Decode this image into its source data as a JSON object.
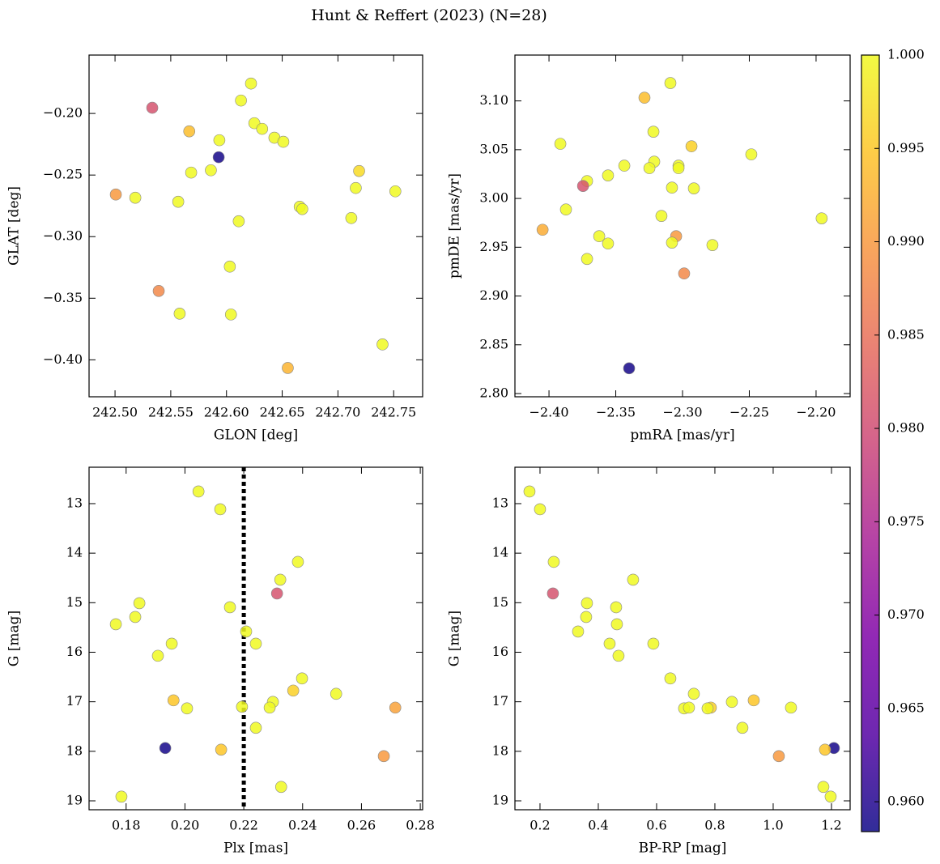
{
  "title": "Hunt & Reffert (2023) (N=28)",
  "colorbar": {
    "colormap": "plasma",
    "clim": [
      0.9584,
      1.0
    ],
    "ticks": [
      {
        "value": 0.96,
        "label": "0.960"
      },
      {
        "value": 0.965,
        "label": "0.965"
      },
      {
        "value": 0.97,
        "label": "0.970"
      },
      {
        "value": 0.975,
        "label": "0.975"
      },
      {
        "value": 0.98,
        "label": "0.980"
      },
      {
        "value": 0.985,
        "label": "0.985"
      },
      {
        "value": 0.99,
        "label": "0.990"
      },
      {
        "value": 0.995,
        "label": "0.995"
      },
      {
        "value": 1.0,
        "label": "1.000"
      }
    ]
  },
  "chart_data": [
    {
      "type": "scatter",
      "xlabel": "GLON [deg]",
      "ylabel": "GLAT [deg]",
      "x": [
        242.5334,
        242.622,
        242.613,
        242.5666,
        242.5936,
        242.593,
        242.625,
        242.632,
        242.643,
        242.651,
        242.5683,
        242.586,
        242.5007,
        242.5182,
        242.5567,
        242.611,
        242.719,
        242.716,
        242.7515,
        242.6657,
        242.668,
        242.712,
        242.603,
        242.5392,
        242.558,
        242.604,
        242.74,
        242.655
      ],
      "values": [
        -0.1954,
        -0.1757,
        -0.1895,
        -0.2145,
        -0.2217,
        -0.2355,
        -0.2079,
        -0.2125,
        -0.2197,
        -0.223,
        -0.248,
        -0.2461,
        -0.2658,
        -0.2684,
        -0.2717,
        -0.2875,
        -0.2467,
        -0.2605,
        -0.2632,
        -0.2757,
        -0.2776,
        -0.2849,
        -0.3243,
        -0.3441,
        -0.3625,
        -0.3632,
        -0.3875,
        -0.4066
      ],
      "color_values": [
        0.981,
        1.0,
        1.0,
        0.994,
        1.0,
        0.959,
        1.0,
        1.0,
        1.0,
        1.0,
        1.0,
        1.0,
        0.99,
        1.0,
        1.0,
        1.0,
        0.997,
        1.0,
        1.0,
        1.0,
        1.0,
        1.0,
        1.0,
        0.988,
        1.0,
        1.0,
        1.0,
        0.993
      ],
      "xlim": [
        242.4767,
        242.776
      ],
      "ylim": [
        -0.43,
        -0.1526
      ],
      "xticks": [
        {
          "value": 242.5,
          "label": "242.50"
        },
        {
          "value": 242.55,
          "label": "242.55"
        },
        {
          "value": 242.6,
          "label": "242.60"
        },
        {
          "value": 242.65,
          "label": "242.65"
        },
        {
          "value": 242.7,
          "label": "242.70"
        },
        {
          "value": 242.75,
          "label": "242.75"
        }
      ],
      "yticks": [
        {
          "value": -0.4,
          "label": "−0.40"
        },
        {
          "value": -0.35,
          "label": "−0.35"
        },
        {
          "value": -0.3,
          "label": "−0.30"
        },
        {
          "value": -0.25,
          "label": "−0.25"
        },
        {
          "value": -0.2,
          "label": "−0.20"
        }
      ]
    },
    {
      "type": "scatter",
      "xlabel": "pmRA [mas/yr]",
      "ylabel": "pmDE [mas/yr]",
      "x": [
        -2.3091,
        -2.3285,
        -2.3218,
        -2.3915,
        -2.2485,
        -2.2933,
        -2.3212,
        -2.3436,
        -2.3248,
        -2.303,
        -2.303,
        -2.3558,
        -2.3715,
        -2.3745,
        -2.3079,
        -2.2915,
        -2.3873,
        -2.3158,
        -2.1958,
        -2.4048,
        -2.3624,
        -2.3048,
        -2.3558,
        -2.3079,
        -2.2776,
        -2.3715,
        -2.2988,
        -2.34
      ],
      "values": [
        3.1183,
        3.1033,
        3.0684,
        3.056,
        3.0452,
        3.0535,
        3.0377,
        3.0336,
        3.0311,
        3.0336,
        3.0311,
        3.0236,
        3.0178,
        3.0128,
        3.0111,
        3.0103,
        2.9887,
        2.9821,
        2.9796,
        2.9679,
        2.9613,
        2.9613,
        2.9538,
        2.9547,
        2.9522,
        2.938,
        2.9231,
        2.8259
      ],
      "color_values": [
        1.0,
        0.994,
        1.0,
        1.0,
        1.0,
        0.996,
        1.0,
        1.0,
        1.0,
        1.0,
        1.0,
        1.0,
        1.0,
        0.981,
        1.0,
        1.0,
        1.0,
        1.0,
        1.0,
        0.992,
        1.0,
        0.99,
        1.0,
        1.0,
        1.0,
        1.0,
        0.988,
        0.959
      ],
      "xlim": [
        -2.4255,
        -2.1745
      ],
      "ylim": [
        2.7967,
        3.147
      ],
      "xticks": [
        {
          "value": -2.4,
          "label": "−2.40"
        },
        {
          "value": -2.35,
          "label": "−2.35"
        },
        {
          "value": -2.3,
          "label": "−2.30"
        },
        {
          "value": -2.25,
          "label": "−2.25"
        },
        {
          "value": -2.2,
          "label": "−2.20"
        }
      ],
      "yticks": [
        {
          "value": 2.8,
          "label": "2.80"
        },
        {
          "value": 2.85,
          "label": "2.85"
        },
        {
          "value": 2.9,
          "label": "2.90"
        },
        {
          "value": 2.95,
          "label": "2.95"
        },
        {
          "value": 3.0,
          "label": "3.00"
        },
        {
          "value": 3.05,
          "label": "3.05"
        },
        {
          "value": 3.1,
          "label": "3.10"
        }
      ]
    },
    {
      "type": "scatter",
      "xlabel": "Plx [mas]",
      "ylabel": "G [mag]",
      "x": [
        0.2046,
        0.212,
        0.2384,
        0.2324,
        0.2313,
        0.1845,
        0.1831,
        0.1765,
        0.2153,
        0.2208,
        0.2241,
        0.1955,
        0.1908,
        0.2398,
        0.2514,
        0.2368,
        0.2299,
        0.1961,
        0.2007,
        0.2194,
        0.2288,
        0.2715,
        0.2241,
        0.1933,
        0.2123,
        0.2676,
        0.2327,
        0.1784
      ],
      "values": [
        12.755,
        13.114,
        14.176,
        14.536,
        14.814,
        15.01,
        15.288,
        15.435,
        15.092,
        15.582,
        15.827,
        15.827,
        16.072,
        16.529,
        16.84,
        16.775,
        17.003,
        16.971,
        17.134,
        17.101,
        17.118,
        17.118,
        17.526,
        17.935,
        17.967,
        18.098,
        18.719,
        18.915
      ],
      "color_values": [
        1.0,
        1.0,
        1.0,
        1.0,
        0.981,
        1.0,
        1.0,
        1.0,
        1.0,
        1.0,
        1.0,
        1.0,
        1.0,
        1.0,
        1.0,
        0.996,
        1.0,
        0.995,
        1.0,
        1.0,
        1.0,
        0.991,
        1.0,
        0.959,
        0.995,
        0.99,
        1.0,
        1.0
      ],
      "xlim": [
        0.1674,
        0.2808
      ],
      "ylim": [
        19.18,
        12.265
      ],
      "xticks": [
        {
          "value": 0.18,
          "label": "0.18"
        },
        {
          "value": 0.2,
          "label": "0.20"
        },
        {
          "value": 0.22,
          "label": "0.22"
        },
        {
          "value": 0.24,
          "label": "0.24"
        },
        {
          "value": 0.26,
          "label": "0.26"
        },
        {
          "value": 0.28,
          "label": "0.28"
        }
      ],
      "yticks": [
        13,
        14,
        15,
        16,
        17,
        18,
        19
      ],
      "vline": 0.22
    },
    {
      "type": "scatter",
      "xlabel": "BP-RP [mag]",
      "ylabel": "G [mag]",
      "x": [
        0.1639,
        0.2,
        0.2472,
        0.5194,
        0.2444,
        0.3611,
        0.4611,
        0.3583,
        0.4639,
        0.3306,
        0.4389,
        0.5889,
        0.4694,
        0.6472,
        0.7278,
        0.8583,
        0.9333,
        0.6944,
        0.7861,
        0.775,
        1.0611,
        0.8944,
        1.2083,
        1.1778,
        1.0194,
        1.1722,
        1.1972,
        0.7111
      ],
      "values": [
        12.755,
        13.114,
        14.176,
        14.536,
        14.814,
        15.01,
        15.092,
        15.288,
        15.435,
        15.582,
        15.827,
        15.827,
        16.072,
        16.529,
        16.84,
        17.003,
        16.971,
        17.134,
        17.118,
        17.134,
        17.118,
        17.526,
        17.935,
        17.967,
        18.098,
        18.719,
        18.915,
        17.118
      ],
      "color_values": [
        1.0,
        1.0,
        1.0,
        1.0,
        0.981,
        1.0,
        1.0,
        1.0,
        1.0,
        1.0,
        1.0,
        1.0,
        1.0,
        1.0,
        1.0,
        1.0,
        0.995,
        1.0,
        0.996,
        1.0,
        1.0,
        1.0,
        0.959,
        0.995,
        0.99,
        1.0,
        1.0,
        1.0
      ],
      "xlim": [
        0.114,
        1.264
      ],
      "ylim": [
        19.18,
        12.265
      ],
      "xticks": [
        0.2,
        0.4,
        0.6,
        0.8,
        {
          "value": 1.0,
          "label": "1.0"
        },
        1.2
      ],
      "yticks": [
        13,
        14,
        15,
        16,
        17,
        18,
        19
      ]
    }
  ]
}
